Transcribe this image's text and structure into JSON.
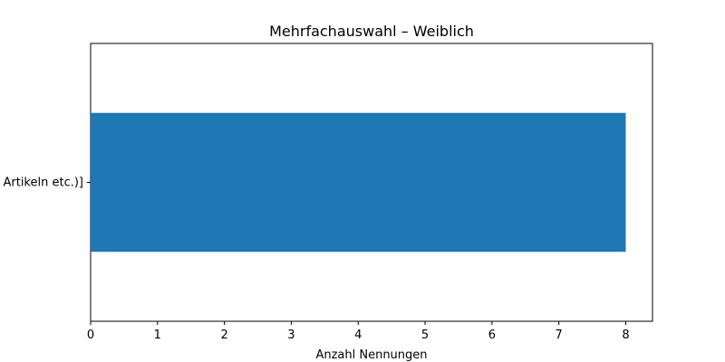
{
  "chart_data": {
    "type": "bar",
    "orientation": "horizontal",
    "title": "Mehrfachauswahl – Weiblich",
    "xlabel": "Anzahl Nennungen",
    "ylabel": "",
    "categories": [
      "Artikeln etc.)]"
    ],
    "values": [
      8
    ],
    "xlim": [
      0,
      8.4
    ],
    "xticks": [
      0,
      1,
      2,
      3,
      4,
      5,
      6,
      7,
      8
    ],
    "grid": false,
    "legend": "none",
    "bar_color": "#1f77b4"
  }
}
